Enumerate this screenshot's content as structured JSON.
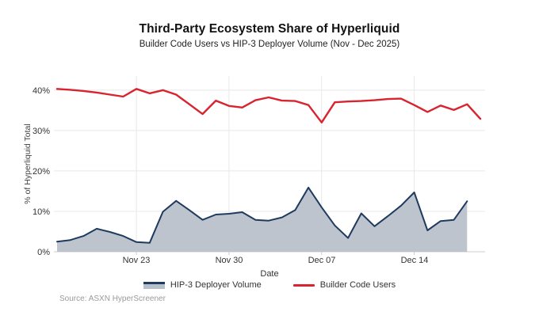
{
  "header": {
    "title": "Third-Party Ecosystem Share of Hyperliquid",
    "subtitle": "Builder Code Users vs HIP-3 Deployer Volume (Nov - Dec 2025)"
  },
  "chart_data": {
    "type": "area",
    "title": "Third-Party Ecosystem Share of Hyperliquid",
    "subtitle": "Builder Code Users vs HIP-3 Deployer Volume (Nov - Dec 2025)",
    "xlabel": "Date",
    "ylabel": "% of Hyperliquid Total",
    "x_dates": [
      "Nov 17",
      "Nov 18",
      "Nov 19",
      "Nov 20",
      "Nov 21",
      "Nov 22",
      "Nov 23",
      "Nov 24",
      "Nov 25",
      "Nov 26",
      "Nov 27",
      "Nov 28",
      "Nov 29",
      "Nov 30",
      "Dec 01",
      "Dec 02",
      "Dec 03",
      "Dec 04",
      "Dec 05",
      "Dec 06",
      "Dec 07",
      "Dec 08",
      "Dec 09",
      "Dec 10",
      "Dec 11",
      "Dec 12",
      "Dec 13",
      "Dec 14",
      "Dec 15",
      "Dec 16",
      "Dec 17",
      "Dec 18",
      "Dec 19"
    ],
    "series": [
      {
        "name": "HIP-3 Deployer Volume",
        "type": "area",
        "line_color": "#1f3a5f",
        "fill_color": "#b7bfca",
        "values": [
          2.5,
          2.9,
          3.9,
          5.7,
          4.9,
          3.9,
          2.4,
          2.2,
          9.9,
          12.6,
          10.3,
          7.9,
          9.2,
          9.4,
          9.8,
          7.9,
          7.7,
          8.5,
          10.3,
          15.9,
          11.0,
          6.5,
          3.4,
          9.5,
          6.3,
          8.8,
          11.4,
          14.7,
          5.3,
          7.6,
          7.9,
          12.5,
          null
        ]
      },
      {
        "name": "Builder Code Users",
        "type": "line",
        "line_color": "#d9232e",
        "values": [
          40.3,
          40.1,
          39.8,
          39.4,
          38.9,
          38.4,
          40.3,
          39.2,
          40.0,
          38.9,
          36.5,
          34.1,
          37.4,
          36.1,
          35.7,
          37.5,
          38.2,
          37.4,
          37.3,
          36.3,
          32.0,
          37.0,
          37.2,
          37.3,
          37.5,
          37.8,
          37.9,
          36.3,
          34.6,
          36.2,
          35.1,
          36.5,
          32.9
        ]
      }
    ],
    "y_ticks": [
      0,
      10,
      20,
      30,
      40
    ],
    "y_tick_labels": [
      "0%",
      "10%",
      "20%",
      "30%",
      "40%"
    ],
    "x_tick_indices": [
      6,
      13,
      20,
      27
    ],
    "x_tick_labels": [
      "Nov 23",
      "Nov 30",
      "Dec 07",
      "Dec 14"
    ],
    "ylim": [
      0,
      43.5
    ],
    "grid": true,
    "legend_position": "bottom",
    "colors": {
      "grid": "#e8e8e8",
      "axis": "#cccccc",
      "accent_red": "#d9232e",
      "accent_navy": "#1f3a5f",
      "area_fill": "#b7bfca"
    }
  },
  "legend": {
    "items": [
      {
        "label": "HIP-3 Deployer Volume"
      },
      {
        "label": "Builder Code Users"
      }
    ]
  },
  "source": {
    "text": "Source: ASXN HyperScreener"
  }
}
